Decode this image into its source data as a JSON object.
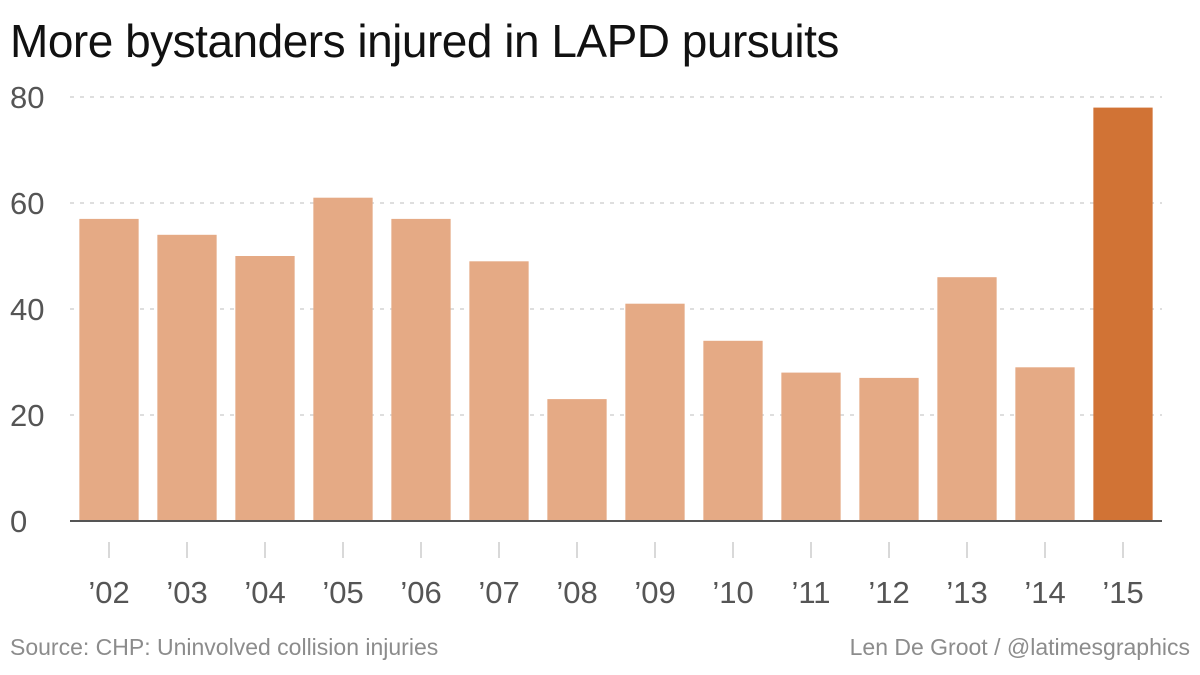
{
  "title": "More bystanders injured in LAPD pursuits",
  "source": "Source: CHP: Uninvolved collision injuries",
  "credit": "Len De Groot / @latimesgraphics",
  "colors": {
    "bar": "#e5aa85",
    "highlight": "#d17335",
    "axis": "#555555",
    "grid": "#d4d4d4"
  },
  "chart_data": {
    "type": "bar",
    "categories": [
      "’02",
      "’03",
      "’04",
      "’05",
      "’06",
      "’07",
      "’08",
      "’09",
      "’10",
      "’11",
      "’12",
      "’13",
      "’14",
      "’15"
    ],
    "values": [
      57,
      54,
      50,
      61,
      57,
      49,
      23,
      41,
      34,
      28,
      27,
      46,
      29,
      78
    ],
    "highlight_category": "’15",
    "yticks": [
      0,
      20,
      40,
      60,
      80
    ],
    "ylim": [
      0,
      80
    ],
    "grid": "horizontal dashed",
    "xlabel": "",
    "ylabel": ""
  }
}
